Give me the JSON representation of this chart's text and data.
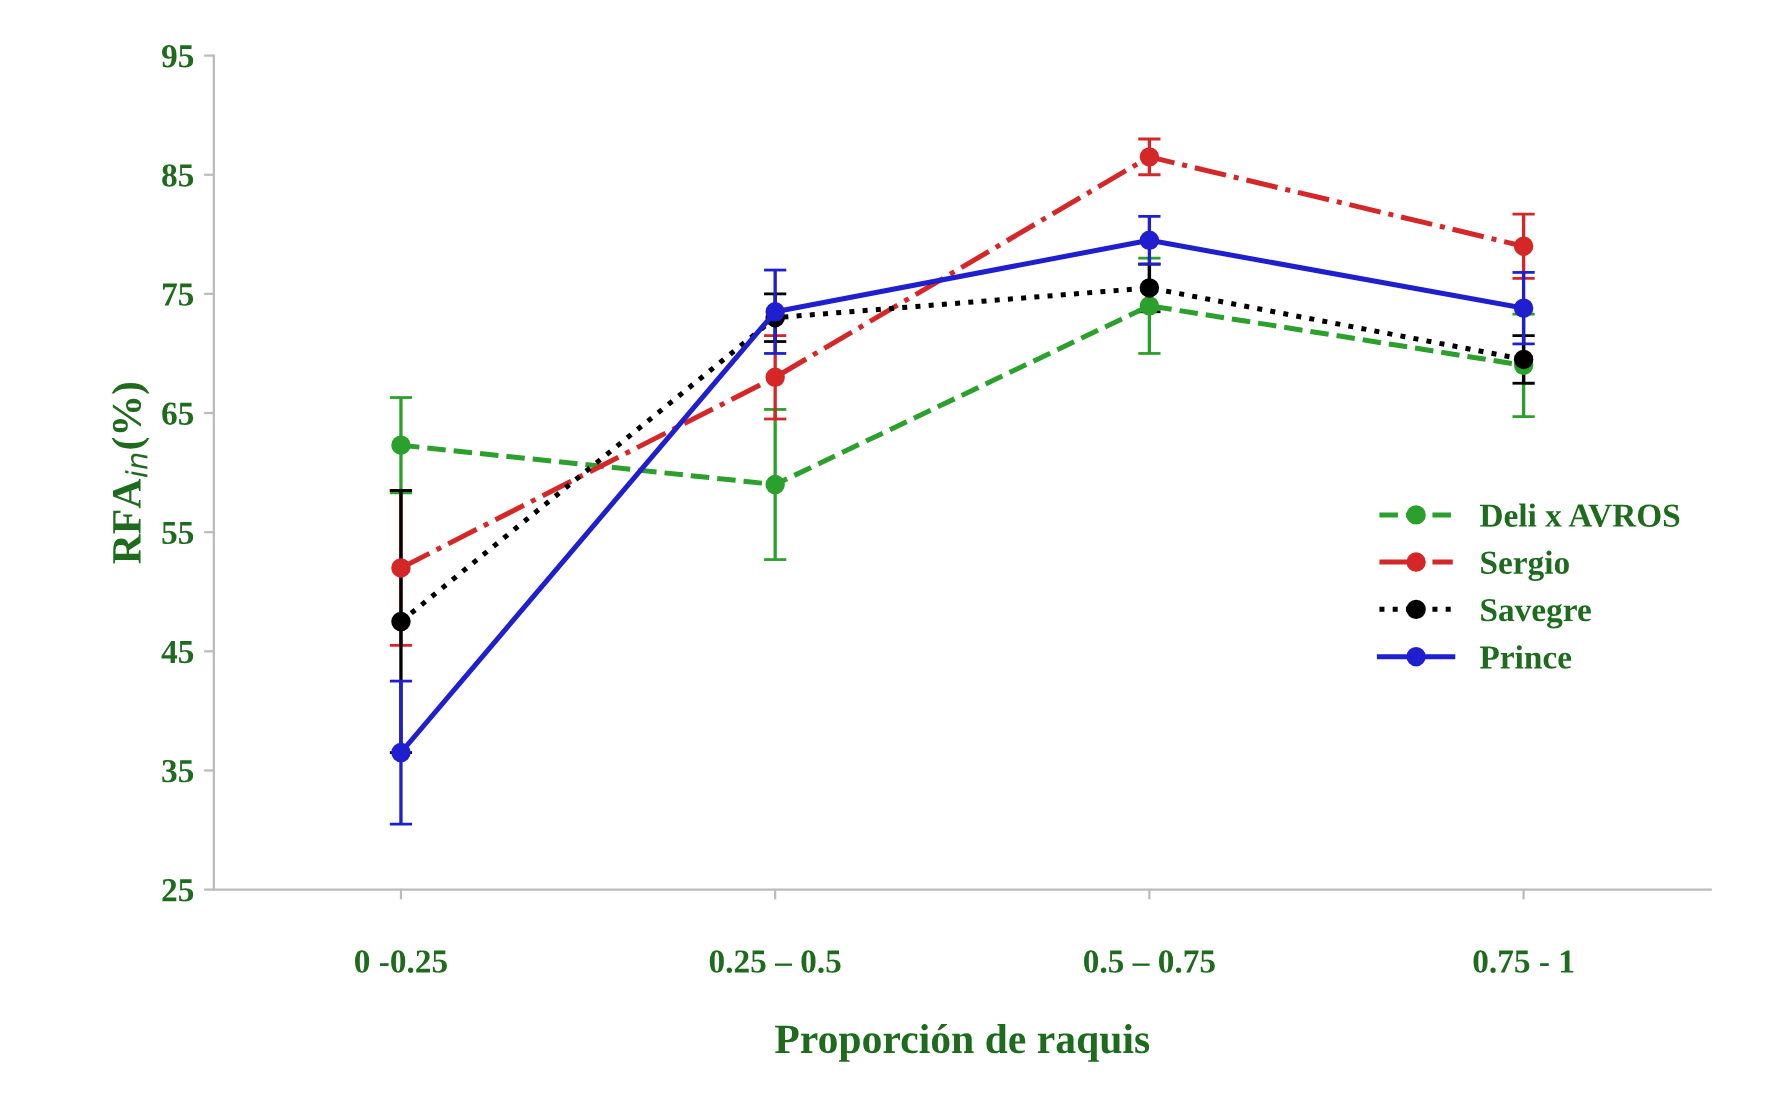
{
  "chart_data": {
    "type": "line",
    "xlabel": "Proporción de raquis",
    "ylabel": "RFA$_{in}$(%)",
    "categories": [
      "0 -0.25",
      "0.25 – 0.5",
      "0.5 – 0.75",
      "0.75 - 1"
    ],
    "ylim": [
      25,
      95
    ],
    "yticks": [
      25,
      35,
      45,
      55,
      65,
      75,
      85,
      95
    ],
    "grid": false,
    "legend": "right",
    "marker": "circle",
    "series": [
      {
        "name": "Deli x AVROS",
        "color": "#2ca02c",
        "line_style": "dashed",
        "values": [
          62.3,
          59,
          74,
          69
        ],
        "errors": [
          4,
          6.3,
          4,
          4.3
        ]
      },
      {
        "name": "Sergio",
        "color": "#d62728",
        "line_style": "dashdot",
        "values": [
          52,
          68,
          86.5,
          79
        ],
        "errors": [
          6.5,
          3.5,
          1.5,
          2.7
        ]
      },
      {
        "name": "Savegre",
        "color": "#000000",
        "line_style": "dotted",
        "values": [
          47.5,
          73,
          75.5,
          69.5
        ],
        "errors": [
          11,
          2,
          2,
          2
        ]
      },
      {
        "name": "Prince",
        "color": "#1f1fd0",
        "line_style": "solid",
        "values": [
          36.5,
          73.5,
          79.5,
          73.8
        ],
        "errors": [
          6,
          3.5,
          2,
          3
        ]
      }
    ]
  }
}
